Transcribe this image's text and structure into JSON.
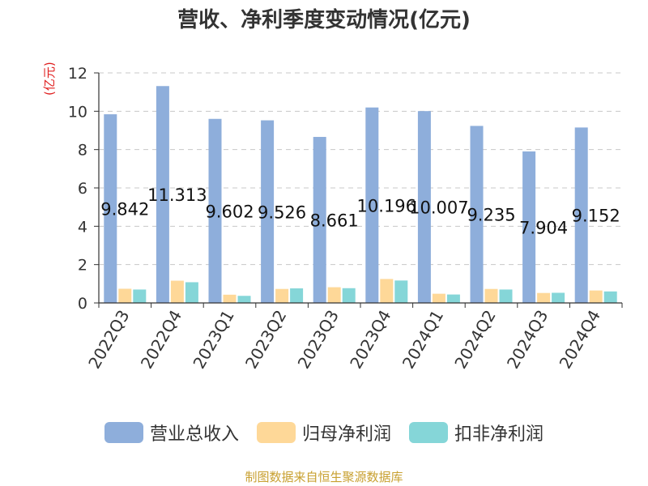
{
  "chart_data": {
    "type": "bar",
    "title": "营收、净利季度变动情况(亿元)",
    "ylabel": "(亿元)",
    "xlabel": "",
    "ylim": [
      0,
      12
    ],
    "yticks": [
      0,
      2,
      4,
      6,
      8,
      10,
      12
    ],
    "grid": true,
    "legend_position": "bottom",
    "categories": [
      "2022Q3",
      "2022Q4",
      "2023Q1",
      "2023Q2",
      "2023Q3",
      "2023Q4",
      "2024Q1",
      "2024Q2",
      "2024Q3",
      "2024Q4"
    ],
    "series": [
      {
        "name": "营业总收入",
        "color": "#8eaedb",
        "values": [
          9.842,
          11.313,
          9.602,
          9.526,
          8.661,
          10.196,
          10.007,
          9.235,
          7.904,
          9.152
        ],
        "labels": [
          "9.842",
          "11.313",
          "9.602",
          "9.526",
          "8.661",
          "10.196",
          "10.007",
          "9.235",
          "7.904",
          "9.152"
        ]
      },
      {
        "name": "归母净利润",
        "color": "#fed898",
        "values": [
          0.74,
          1.16,
          0.43,
          0.73,
          0.82,
          1.25,
          0.48,
          0.73,
          0.52,
          0.65
        ]
      },
      {
        "name": "扣非净利润",
        "color": "#85d6d8",
        "values": [
          0.7,
          1.08,
          0.37,
          0.76,
          0.77,
          1.17,
          0.44,
          0.7,
          0.53,
          0.6
        ]
      }
    ]
  },
  "source": "制图数据来自恒生聚源数据库"
}
